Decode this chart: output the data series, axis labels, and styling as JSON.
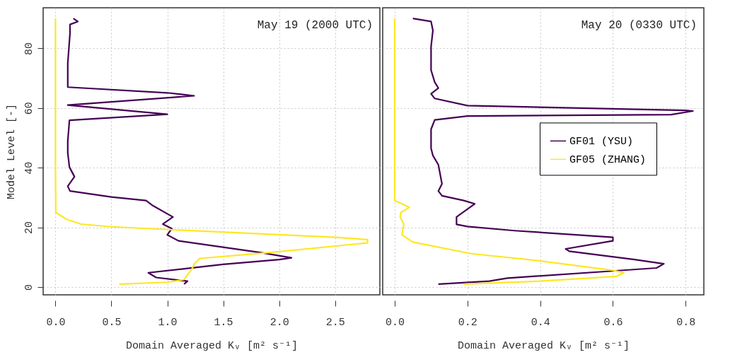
{
  "chart_data": [
    {
      "type": "line",
      "xlabel": "Domain Averaged Kᵥ [m² s⁻¹]",
      "ylabel": "Model Level [-]",
      "annotations": [
        "May 19 (2000 UTC)"
      ],
      "xlim": [
        -0.11,
        2.9
      ],
      "ylim": [
        -2.6,
        93.6
      ],
      "xticks": [
        {
          "value": 0,
          "label": "0.0"
        },
        0.5,
        {
          "value": 1,
          "label": "1.0"
        },
        1.5,
        {
          "value": 2,
          "label": "2.0"
        },
        2.5
      ],
      "yticks": [
        0,
        20,
        40,
        60,
        80
      ],
      "grid": true,
      "line_style": "solid",
      "marker": "none",
      "series": [
        {
          "color": "#440154",
          "x": [
            0.16,
            0.2,
            0.13,
            0.13,
            0.12,
            0.11,
            0.11,
            0.11,
            1.0,
            1.24,
            0.11,
            1.0,
            0.125,
            0.11,
            0.11,
            0.125,
            0.17,
            0.11,
            0.13,
            0.5,
            0.81,
            0.87,
            1.05,
            0.96,
            1.04,
            1.0,
            1.1,
            1.83,
            2.11,
            2.0,
            1.5,
            0.83,
            0.9,
            1.18,
            1.15
          ],
          "values": [
            90,
            89,
            88,
            85,
            80,
            75,
            70,
            67,
            65.1,
            64.1,
            61,
            57.9,
            55.9,
            48.9,
            45,
            40.2,
            37,
            33.8,
            32.2,
            30.2,
            29,
            27.3,
            23.5,
            21.1,
            19.6,
            17.5,
            15.5,
            11.6,
            9.8,
            9.2,
            7.6,
            4.8,
            3.2,
            2,
            1
          ]
        },
        {
          "color": "#fde725",
          "x": [
            0,
            0,
            0.003,
            0.1,
            0.23,
            0.5,
            1.05,
            2.5,
            2.79,
            2.79,
            1.92,
            1.29,
            1.24,
            1.22,
            1.15,
            1.0,
            0.57
          ],
          "values": [
            90,
            40,
            25,
            22.7,
            21.1,
            20.2,
            19.2,
            16.7,
            15.9,
            14.8,
            11.6,
            9.6,
            7.7,
            6.1,
            2.5,
            1.6,
            1
          ]
        }
      ]
    },
    {
      "type": "line",
      "xlabel": "Domain Averaged Kᵥ [m² s⁻¹]",
      "annotations": [
        "May 20 (0330 UTC)"
      ],
      "xlim": [
        -0.033,
        0.85
      ],
      "ylim": [
        -2.6,
        93.6
      ],
      "xticks": [
        {
          "value": 0,
          "label": "0.0"
        },
        0.2,
        0.4,
        0.6,
        0.8
      ],
      "yticks": [
        0,
        20,
        40,
        60,
        80
      ],
      "tick_labels": "x",
      "grid": true,
      "legend": "right",
      "line_style": "solid",
      "marker": "none",
      "series": [
        {
          "name": "GF01 (YSU)",
          "color": "#440154",
          "x": [
            0.05,
            0.1,
            0.105,
            0.1,
            0.1,
            0.11,
            0.12,
            0.1,
            0.11,
            0.2,
            0.8,
            0.82,
            0.76,
            0.2,
            0.11,
            0.1,
            0.1,
            0.105,
            0.12,
            0.13,
            0.12,
            0.13,
            0.19,
            0.22,
            0.17,
            0.17,
            0.2,
            0.33,
            0.6,
            0.6,
            0.47,
            0.48,
            0.66,
            0.74,
            0.72,
            0.6,
            0.31,
            0.26,
            0.12
          ],
          "values": [
            90,
            89,
            86,
            80.6,
            72.7,
            68.7,
            66.7,
            64.8,
            63.2,
            60.8,
            59.2,
            59,
            57.8,
            57.3,
            56,
            52.9,
            46.5,
            44.1,
            41,
            34.6,
            32.2,
            30.6,
            29,
            27.9,
            23.5,
            21,
            20.3,
            18.9,
            16.7,
            15.5,
            12.8,
            12,
            9.2,
            7.8,
            6.4,
            5.4,
            3,
            2,
            1
          ]
        },
        {
          "name": "GF05 (ZHANG)",
          "color": "#fde725",
          "x": [
            0,
            0,
            0.02,
            0.04,
            0.017,
            0.015,
            0.025,
            0.02,
            0.05,
            0.21,
            0.39,
            0.6,
            0.63,
            0.61,
            0.4,
            0.19
          ],
          "values": [
            90,
            29,
            27.9,
            26.7,
            25,
            23.5,
            21.1,
            17.5,
            15.1,
            11.2,
            8.9,
            5.6,
            4.8,
            3.6,
            2,
            1
          ]
        }
      ]
    }
  ]
}
